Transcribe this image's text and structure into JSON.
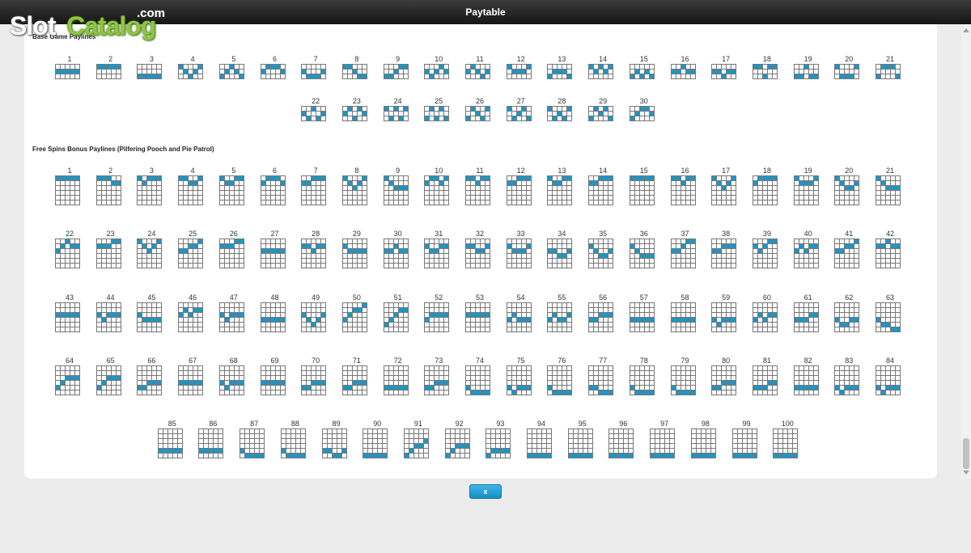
{
  "window": {
    "title": "Paytable"
  },
  "logo": {
    "slot": "Slot",
    "catalog": "Catalog",
    "com": ".com"
  },
  "sections": {
    "base": {
      "title": "Base Game Paylines",
      "cols": 5,
      "rows": 3,
      "lines": [
        [
          1,
          1,
          1,
          1,
          1
        ],
        [
          0,
          0,
          0,
          0,
          0
        ],
        [
          2,
          2,
          2,
          2,
          2
        ],
        [
          0,
          1,
          2,
          1,
          0
        ],
        [
          2,
          1,
          0,
          1,
          2
        ],
        [
          1,
          0,
          0,
          0,
          1
        ],
        [
          1,
          2,
          2,
          2,
          1
        ],
        [
          0,
          0,
          1,
          2,
          2
        ],
        [
          2,
          2,
          1,
          0,
          0
        ],
        [
          1,
          2,
          1,
          0,
          1
        ],
        [
          1,
          0,
          1,
          2,
          1
        ],
        [
          0,
          1,
          1,
          1,
          0
        ],
        [
          2,
          1,
          1,
          1,
          2
        ],
        [
          0,
          1,
          0,
          1,
          0
        ],
        [
          2,
          1,
          2,
          1,
          2
        ],
        [
          1,
          1,
          0,
          1,
          1
        ],
        [
          1,
          1,
          2,
          1,
          1
        ],
        [
          0,
          0,
          2,
          0,
          0
        ],
        [
          2,
          2,
          0,
          2,
          2
        ],
        [
          0,
          2,
          2,
          2,
          0
        ],
        [
          2,
          0,
          0,
          0,
          2
        ],
        [
          1,
          2,
          0,
          2,
          1
        ],
        [
          1,
          0,
          2,
          0,
          1
        ],
        [
          0,
          2,
          0,
          2,
          0
        ],
        [
          2,
          0,
          2,
          0,
          2
        ],
        [
          2,
          0,
          1,
          2,
          0
        ],
        [
          0,
          2,
          1,
          0,
          2
        ],
        [
          0,
          2,
          1,
          2,
          0
        ],
        [
          2,
          0,
          1,
          0,
          2
        ],
        [
          2,
          1,
          0,
          0,
          1
        ]
      ]
    },
    "free": {
      "title": "Free Spins Bonus Paylines (Pilfering Pooch and Pie Patrol)",
      "cols": 5,
      "rows": 6,
      "lines": [
        [
          0,
          0,
          0,
          0,
          0
        ],
        [
          0,
          0,
          0,
          1,
          1
        ],
        [
          0,
          1,
          0,
          0,
          0
        ],
        [
          0,
          0,
          1,
          1,
          0
        ],
        [
          0,
          1,
          1,
          0,
          0
        ],
        [
          1,
          0,
          0,
          0,
          1
        ],
        [
          1,
          1,
          0,
          0,
          0
        ],
        [
          0,
          1,
          2,
          1,
          0
        ],
        [
          0,
          1,
          2,
          2,
          2
        ],
        [
          1,
          0,
          0,
          1,
          0
        ],
        [
          0,
          0,
          1,
          0,
          0
        ],
        [
          1,
          1,
          0,
          0,
          0
        ],
        [
          0,
          1,
          1,
          0,
          0
        ],
        [
          1,
          1,
          0,
          0,
          0
        ],
        [
          0,
          0,
          0,
          0,
          0
        ],
        [
          0,
          0,
          1,
          0,
          0
        ],
        [
          0,
          1,
          2,
          1,
          0
        ],
        [
          1,
          0,
          0,
          0,
          0
        ],
        [
          0,
          1,
          1,
          1,
          0
        ],
        [
          0,
          1,
          2,
          2,
          1
        ],
        [
          0,
          1,
          2,
          2,
          2
        ],
        [
          2,
          1,
          0,
          1,
          1
        ],
        [
          1,
          1,
          1,
          0,
          0
        ],
        [
          0,
          1,
          2,
          1,
          0
        ],
        [
          2,
          2,
          1,
          1,
          0
        ],
        [
          1,
          1,
          1,
          0,
          0
        ],
        [
          2,
          2,
          2,
          2,
          2
        ],
        [
          1,
          1,
          2,
          1,
          1
        ],
        [
          1,
          2,
          2,
          2,
          2
        ],
        [
          2,
          2,
          1,
          2,
          2
        ],
        [
          1,
          2,
          2,
          1,
          1
        ],
        [
          1,
          1,
          2,
          2,
          1
        ],
        [
          1,
          2,
          2,
          2,
          1
        ],
        [
          2,
          2,
          3,
          3,
          2
        ],
        [
          1,
          2,
          3,
          3,
          2
        ],
        [
          1,
          2,
          3,
          3,
          3
        ],
        [
          2,
          2,
          1,
          0,
          0
        ],
        [
          2,
          2,
          1,
          1,
          1
        ],
        [
          1,
          2,
          1,
          0,
          0
        ],
        [
          2,
          1,
          2,
          1,
          1
        ],
        [
          2,
          2,
          1,
          1,
          0
        ],
        [
          1,
          1,
          0,
          1,
          1
        ],
        [
          2,
          2,
          2,
          2,
          2
        ],
        [
          2,
          3,
          2,
          2,
          2
        ],
        [
          2,
          3,
          3,
          3,
          3
        ],
        [
          2,
          1,
          2,
          1,
          1
        ],
        [
          2,
          3,
          2,
          2,
          2
        ],
        [
          3,
          3,
          3,
          3,
          3
        ],
        [
          2,
          3,
          4,
          3,
          2
        ],
        [
          3,
          2,
          1,
          1,
          0
        ],
        [
          4,
          3,
          2,
          1,
          1
        ],
        [
          3,
          2,
          2,
          2,
          2
        ],
        [
          2,
          2,
          2,
          2,
          2
        ],
        [
          3,
          2,
          3,
          3,
          3
        ],
        [
          3,
          2,
          3,
          3,
          2
        ],
        [
          3,
          3,
          2,
          2,
          2
        ],
        [
          3,
          3,
          3,
          3,
          3
        ],
        [
          3,
          3,
          3,
          3,
          3
        ],
        [
          3,
          4,
          3,
          3,
          3
        ],
        [
          3,
          2,
          3,
          2,
          2
        ],
        [
          3,
          3,
          3,
          2,
          2
        ],
        [
          3,
          4,
          4,
          3,
          3
        ],
        [
          3,
          4,
          4,
          5,
          5
        ],
        [
          4,
          3,
          2,
          2,
          2
        ],
        [
          4,
          3,
          2,
          2,
          2
        ],
        [
          4,
          4,
          3,
          3,
          3
        ],
        [
          3,
          3,
          3,
          3,
          3
        ],
        [
          3,
          4,
          3,
          3,
          3
        ],
        [
          3,
          3,
          3,
          3,
          3
        ],
        [
          4,
          4,
          3,
          3,
          3
        ],
        [
          4,
          4,
          3,
          3,
          3
        ],
        [
          4,
          4,
          4,
          4,
          4
        ],
        [
          4,
          4,
          3,
          3,
          3
        ],
        [
          4,
          5,
          5,
          5,
          5
        ],
        [
          4,
          5,
          4,
          4,
          4
        ],
        [
          4,
          5,
          5,
          5,
          5
        ],
        [
          4,
          4,
          5,
          5,
          5
        ],
        [
          4,
          5,
          5,
          5,
          5
        ],
        [
          4,
          5,
          5,
          5,
          5
        ],
        [
          4,
          4,
          3,
          3,
          3
        ],
        [
          4,
          4,
          4,
          3,
          3
        ],
        [
          4,
          4,
          4,
          4,
          4
        ],
        [
          4,
          5,
          4,
          4,
          4
        ],
        [
          4,
          5,
          4,
          4,
          4
        ],
        [
          4,
          4,
          4,
          4,
          4
        ],
        [
          4,
          4,
          4,
          4,
          4
        ],
        [
          4,
          5,
          5,
          5,
          5
        ],
        [
          4,
          5,
          5,
          5,
          5
        ],
        [
          4,
          4,
          5,
          5,
          4
        ],
        [
          5,
          5,
          5,
          5,
          5
        ],
        [
          5,
          4,
          3,
          3,
          2
        ],
        [
          5,
          4,
          3,
          3,
          3
        ],
        [
          5,
          4,
          4,
          4,
          4
        ],
        [
          5,
          5,
          5,
          5,
          5
        ],
        [
          5,
          5,
          5,
          5,
          5
        ],
        [
          5,
          5,
          5,
          5,
          5
        ],
        [
          5,
          5,
          5,
          5,
          5
        ],
        [
          5,
          5,
          5,
          5,
          5
        ],
        [
          5,
          5,
          5,
          5,
          5
        ],
        [
          5,
          5,
          5,
          5,
          5
        ]
      ]
    }
  },
  "close_button": {
    "label": "x"
  },
  "colors": {
    "active_cell": "#1a96c8",
    "grid_line": "#777777",
    "button": "#1e9ad3"
  }
}
